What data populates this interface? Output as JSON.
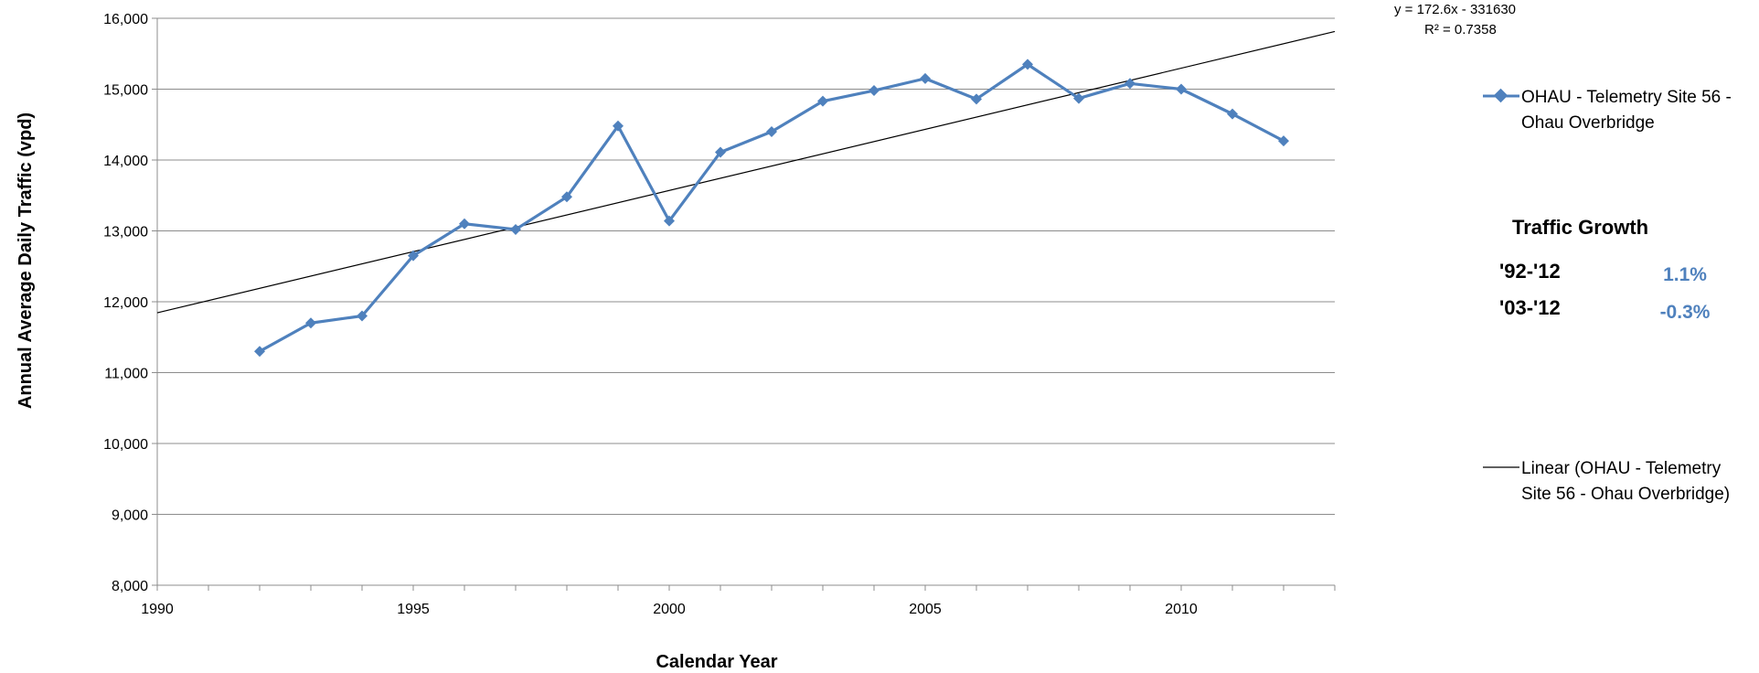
{
  "chart_data": {
    "type": "line",
    "title": "",
    "xlabel": "Calendar Year",
    "ylabel": "Annual Average Daily Traffic (vpd)",
    "xlim": [
      1990,
      2013
    ],
    "ylim": [
      8000,
      16000
    ],
    "x_ticks": [
      1990,
      1995,
      2000,
      2005,
      2010
    ],
    "y_ticks": [
      8000,
      9000,
      10000,
      11000,
      12000,
      13000,
      14000,
      15000,
      16000
    ],
    "x_tick_labels": [
      "1990",
      "1995",
      "2000",
      "2005",
      "2010"
    ],
    "y_tick_labels": [
      "8,000",
      "9,000",
      "10,000",
      "11,000",
      "12,000",
      "13,000",
      "14,000",
      "15,000",
      "16,000"
    ],
    "grid": "horizontal",
    "legend_position": "right",
    "colors": {
      "series": "#4F81BD",
      "trend": "#000000",
      "growth_value": "#4F81BD",
      "grid": "#8C8C8C"
    },
    "series": [
      {
        "name": "OHAU - Telemetry Site 56 - Ohau Overbridge",
        "marker": "diamond",
        "x": [
          1992,
          1993,
          1994,
          1995,
          1996,
          1997,
          1998,
          1999,
          2000,
          2001,
          2002,
          2003,
          2004,
          2005,
          2006,
          2007,
          2008,
          2009,
          2010,
          2011,
          2012
        ],
        "y": [
          11300,
          11700,
          11800,
          12650,
          13100,
          13020,
          13480,
          14480,
          13140,
          14110,
          14400,
          14830,
          14980,
          15150,
          14860,
          15350,
          14870,
          15080,
          15000,
          14650,
          14270
        ]
      }
    ],
    "trendline": {
      "name": "Linear (OHAU - Telemetry Site 56 - Ohau Overbridge)",
      "slope": 172.6,
      "intercept": -331630,
      "equation_label": "y = 172.6x - 331630",
      "r2_label": "R² = 0.7358"
    }
  },
  "legend": {
    "series_line1": "OHAU - Telemetry Site 56 -",
    "series_line2": "Ohau Overbridge",
    "trend_line1": "Linear (OHAU - Telemetry",
    "trend_line2": "Site 56 - Ohau Overbridge)"
  },
  "growth": {
    "title": "Traffic Growth",
    "rows": [
      {
        "period": "'92-'12",
        "value": "1.1%"
      },
      {
        "period": "'03-'12",
        "value": "-0.3%"
      }
    ]
  }
}
